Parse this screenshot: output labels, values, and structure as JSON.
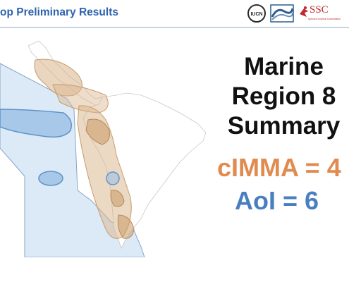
{
  "header": {
    "title": "op Preliminary Results",
    "logos": {
      "iucn_text": "IUCN",
      "ssc_text": "SSC",
      "ssc_subtitle": "Species Survival Commission"
    }
  },
  "summary": {
    "line1": "Marine",
    "line2": "Region 8",
    "line3": "Summary"
  },
  "stats": {
    "cimma": "cIMMA = 4",
    "aoi": "AoI = 6"
  },
  "colors": {
    "title_blue": "#2e64ad",
    "cimma_orange": "#e08b4f",
    "aoi_blue": "#4a7fbf",
    "region_fill": "#dbeaf6",
    "region_border": "#8aa6c8",
    "cimma_fill": "#d9b38a",
    "aoi_fill": "#9ec2e6"
  }
}
